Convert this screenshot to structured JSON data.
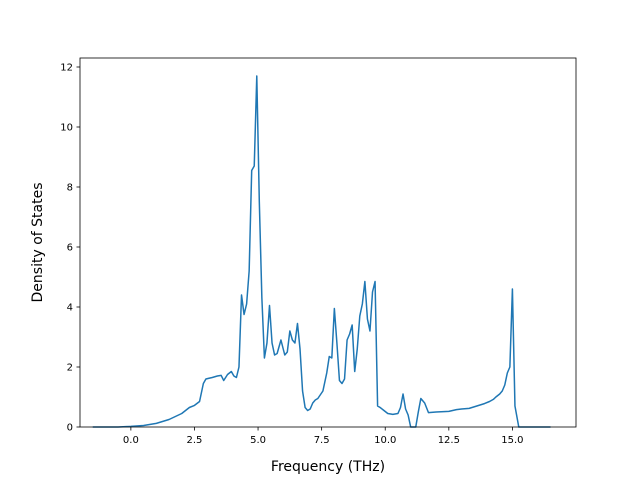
{
  "chart_data": {
    "type": "line",
    "title": "",
    "xlabel": "Frequency (THz)",
    "ylabel": "Density of States",
    "xlim": [
      -2.0,
      17.5
    ],
    "ylim": [
      0,
      12.3
    ],
    "xticks": [
      0.0,
      2.5,
      5.0,
      7.5,
      10.0,
      12.5,
      15.0
    ],
    "xtick_labels": [
      "0.0",
      "2.5",
      "5.0",
      "7.5",
      "10.0",
      "12.5",
      "15.0"
    ],
    "yticks": [
      0,
      2,
      4,
      6,
      8,
      10,
      12
    ],
    "ytick_labels": [
      "0",
      "2",
      "4",
      "6",
      "8",
      "10",
      "12"
    ],
    "grid": false,
    "legend": "none",
    "line_color": "#1f77b4",
    "series": [
      {
        "x": [
          -1.5,
          -0.5,
          0.0,
          0.5,
          1.0,
          1.5,
          2.0,
          2.3,
          2.5,
          2.7,
          2.85,
          2.95,
          3.05,
          3.2,
          3.4,
          3.55,
          3.65,
          3.8,
          3.95,
          4.05,
          4.15,
          4.25,
          4.35,
          4.45,
          4.55,
          4.65,
          4.75,
          4.85,
          4.95,
          5.05,
          5.15,
          5.25,
          5.35,
          5.45,
          5.55,
          5.65,
          5.75,
          5.9,
          6.05,
          6.15,
          6.25,
          6.35,
          6.45,
          6.55,
          6.65,
          6.75,
          6.85,
          6.95,
          7.05,
          7.15,
          7.25,
          7.35,
          7.55,
          7.7,
          7.8,
          7.9,
          8.0,
          8.1,
          8.2,
          8.3,
          8.4,
          8.5,
          8.6,
          8.7,
          8.8,
          8.9,
          9.0,
          9.1,
          9.2,
          9.3,
          9.4,
          9.5,
          9.6,
          9.7,
          9.8,
          9.95,
          10.1,
          10.3,
          10.5,
          10.6,
          10.7,
          10.8,
          10.9,
          11.0,
          11.1,
          11.2,
          11.3,
          11.4,
          11.55,
          11.7,
          12.0,
          12.5,
          12.8,
          13.0,
          13.3,
          13.6,
          13.9,
          14.1,
          14.25,
          14.35,
          14.5,
          14.6,
          14.7,
          14.8,
          14.9,
          15.0,
          15.1,
          15.25,
          15.5,
          16.5
        ],
        "y": [
          0,
          0,
          0.02,
          0.05,
          0.12,
          0.25,
          0.45,
          0.65,
          0.72,
          0.85,
          1.45,
          1.6,
          1.62,
          1.65,
          1.7,
          1.72,
          1.55,
          1.75,
          1.85,
          1.7,
          1.65,
          2.0,
          4.4,
          3.75,
          4.1,
          5.2,
          8.55,
          8.7,
          11.7,
          7.5,
          4.3,
          2.3,
          2.8,
          4.05,
          2.8,
          2.4,
          2.45,
          2.9,
          2.4,
          2.5,
          3.2,
          2.9,
          2.8,
          3.45,
          2.6,
          1.2,
          0.65,
          0.55,
          0.6,
          0.8,
          0.9,
          0.95,
          1.2,
          1.8,
          2.35,
          2.3,
          3.95,
          2.8,
          1.55,
          1.45,
          1.6,
          2.9,
          3.1,
          3.4,
          1.85,
          2.6,
          3.7,
          4.1,
          4.85,
          3.6,
          3.2,
          4.5,
          4.85,
          0.7,
          0.65,
          0.55,
          0.45,
          0.42,
          0.45,
          0.65,
          1.1,
          0.6,
          0.4,
          0,
          0,
          0,
          0.5,
          0.95,
          0.8,
          0.48,
          0.5,
          0.52,
          0.58,
          0.6,
          0.62,
          0.7,
          0.78,
          0.85,
          0.92,
          1.0,
          1.1,
          1.2,
          1.4,
          1.8,
          2.0,
          4.6,
          0.7,
          0,
          0,
          0
        ]
      }
    ]
  }
}
